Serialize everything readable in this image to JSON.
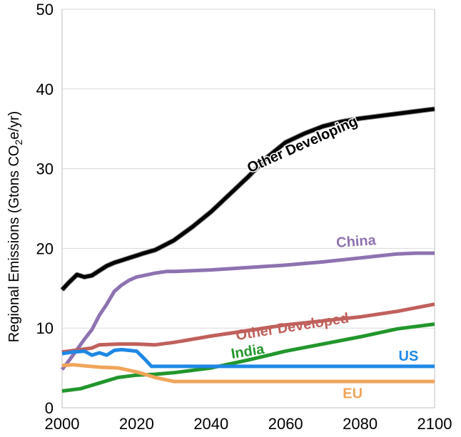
{
  "chart_data": {
    "type": "line",
    "title": "",
    "xlabel": "",
    "ylabel": "Regional Emissions (Gtons CO2e/yr)",
    "ylabel_parts": {
      "pre": "Regional Emissions (Gtons CO",
      "sub": "2",
      "post": "e/yr)"
    },
    "xlim": [
      2000,
      2100
    ],
    "ylim": [
      0,
      50
    ],
    "xticks": [
      "2000",
      "2020",
      "2040",
      "2060",
      "2080",
      "2100"
    ],
    "yticks": [
      "0",
      "10",
      "20",
      "30",
      "40",
      "50"
    ],
    "grid": "horizontal",
    "legend": "none (series labeled inline)",
    "series": [
      {
        "name": "Other Developing",
        "color": "#000000",
        "x": [
          2000,
          2002,
          2004,
          2006,
          2008,
          2010,
          2012,
          2014,
          2016,
          2018,
          2020,
          2022,
          2025,
          2030,
          2035,
          2040,
          2045,
          2050,
          2055,
          2060,
          2065,
          2070,
          2075,
          2080,
          2085,
          2090,
          2095,
          2100
        ],
        "values": [
          14.8,
          15.8,
          16.7,
          16.4,
          16.6,
          17.2,
          17.8,
          18.2,
          18.5,
          18.8,
          19.1,
          19.4,
          19.8,
          21.0,
          22.7,
          24.6,
          26.8,
          29.0,
          31.4,
          33.3,
          34.4,
          35.3,
          35.9,
          36.3,
          36.6,
          36.9,
          37.2,
          37.5
        ]
      },
      {
        "name": "China",
        "color": "#8e72b0",
        "x": [
          2000,
          2002,
          2004,
          2006,
          2008,
          2010,
          2012,
          2014,
          2016,
          2018,
          2020,
          2022,
          2025,
          2028,
          2030,
          2040,
          2050,
          2060,
          2070,
          2080,
          2090,
          2095,
          2100
        ],
        "values": [
          4.8,
          6.0,
          7.3,
          8.6,
          9.8,
          11.6,
          13.0,
          14.6,
          15.4,
          16.0,
          16.4,
          16.6,
          16.9,
          17.1,
          17.1,
          17.3,
          17.6,
          17.9,
          18.3,
          18.8,
          19.3,
          19.4,
          19.4
        ]
      },
      {
        "name": "Other Developed",
        "color": "#c0605c",
        "x": [
          2000,
          2005,
          2008,
          2010,
          2015,
          2020,
          2025,
          2030,
          2040,
          2050,
          2060,
          2070,
          2080,
          2090,
          2100
        ],
        "values": [
          7.0,
          7.3,
          7.5,
          7.9,
          8.0,
          8.0,
          7.9,
          8.2,
          9.0,
          9.7,
          10.4,
          10.9,
          11.4,
          12.1,
          13.0
        ]
      },
      {
        "name": "India",
        "color": "#22962c",
        "x": [
          2000,
          2005,
          2010,
          2015,
          2020,
          2025,
          2030,
          2040,
          2050,
          2060,
          2070,
          2080,
          2090,
          2100
        ],
        "values": [
          2.1,
          2.4,
          3.1,
          3.8,
          4.1,
          4.2,
          4.4,
          5.0,
          6.0,
          7.1,
          8.0,
          8.9,
          9.9,
          10.5
        ]
      },
      {
        "name": "US",
        "color": "#1f88e5",
        "x": [
          2000,
          2003,
          2006,
          2008,
          2010,
          2012,
          2014,
          2016,
          2018,
          2020,
          2022,
          2024,
          2100
        ],
        "values": [
          6.8,
          7.0,
          7.1,
          6.6,
          6.9,
          6.6,
          7.2,
          7.3,
          7.2,
          7.1,
          6.2,
          5.2,
          5.2
        ]
      },
      {
        "name": "EU",
        "color": "#f0a55a",
        "x": [
          2000,
          2003,
          2005,
          2010,
          2015,
          2020,
          2023,
          2025,
          2028,
          2030,
          2100
        ],
        "values": [
          5.3,
          5.4,
          5.3,
          5.1,
          5.0,
          4.5,
          4.1,
          3.8,
          3.5,
          3.3,
          3.3
        ]
      }
    ],
    "annotations": [
      "Other Developing",
      "China",
      "Other Developed",
      "India",
      "US",
      "EU"
    ]
  }
}
